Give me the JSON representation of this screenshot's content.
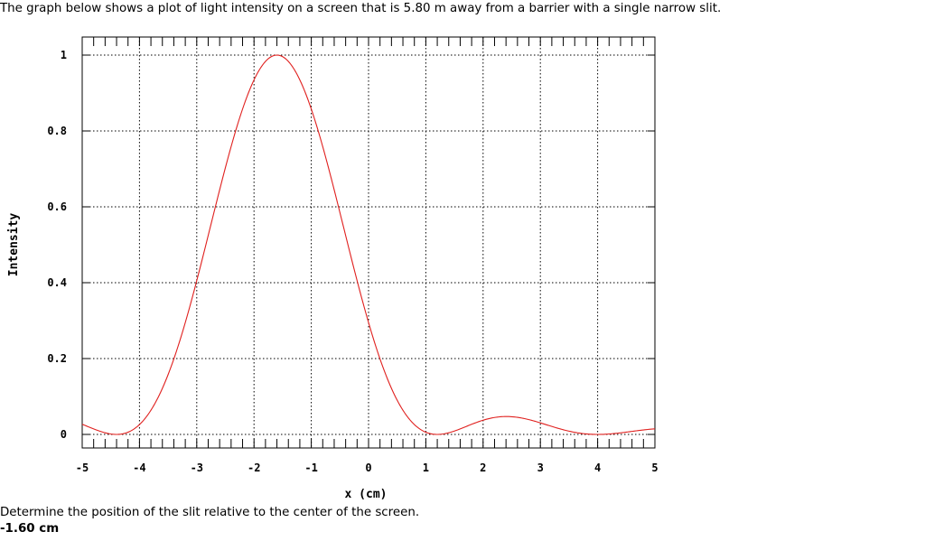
{
  "question": {
    "text": "The graph below shows a plot of light intensity on a screen that is 5.80 m away from a barrier with a single narrow slit."
  },
  "prompt": {
    "text": "Determine the position of the slit relative to the center of the screen."
  },
  "answer": {
    "text": "-1.60 cm"
  },
  "chart_data": {
    "type": "line",
    "title": "",
    "xlabel": "x (cm)",
    "ylabel": "Intensity",
    "xlim": [
      -5,
      5
    ],
    "ylim": [
      0,
      1
    ],
    "xticks": [
      "-5",
      "-4",
      "-3",
      "-2",
      "-1",
      "0",
      "1",
      "2",
      "3",
      "4",
      "5"
    ],
    "yticks": [
      "0",
      "0.2",
      "0.4",
      "0.6",
      "0.8",
      "1"
    ],
    "grid": true,
    "legend": null,
    "line_color": "#e0201e",
    "series": [
      {
        "name": "Intensity",
        "x": [
          -5.0,
          -4.8,
          -4.6,
          -4.4,
          -4.2,
          -4.0,
          -3.6,
          -3.2,
          -3.0,
          -2.8,
          -2.4,
          -2.0,
          -1.8,
          -1.6,
          -1.4,
          -1.2,
          -0.8,
          -0.4,
          0.0,
          0.4,
          0.8,
          1.0,
          1.2,
          1.4,
          1.8,
          2.0,
          2.3,
          2.6,
          3.0,
          3.4,
          3.8,
          4.0,
          4.2,
          4.6,
          5.0
        ],
        "values": [
          0.03,
          0.015,
          0.004,
          0.0,
          0.006,
          0.02,
          0.12,
          0.3,
          0.4,
          0.52,
          0.76,
          0.94,
          0.98,
          1.0,
          0.98,
          0.94,
          0.76,
          0.52,
          0.3,
          0.12,
          0.02,
          0.006,
          0.0,
          0.004,
          0.03,
          0.042,
          0.047,
          0.042,
          0.025,
          0.008,
          0.001,
          0.0,
          0.002,
          0.01,
          0.016
        ]
      }
    ],
    "peak_x": -1.6
  }
}
